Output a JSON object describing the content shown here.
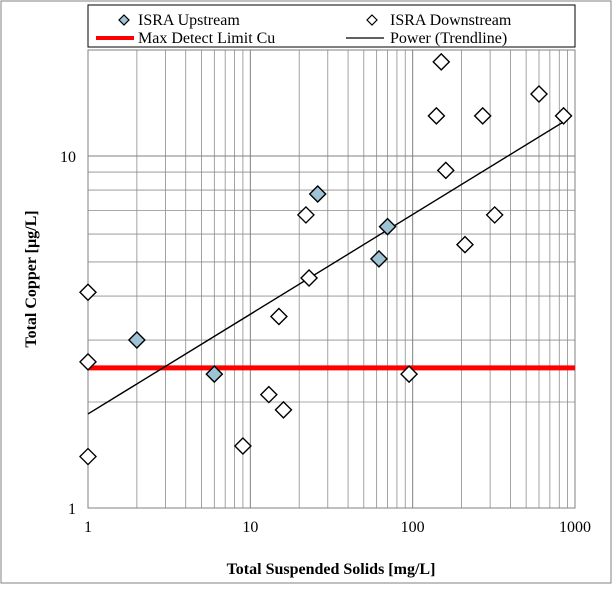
{
  "chart_data": {
    "type": "scatter",
    "xlabel": "Total Suspended Solids [mg/L]",
    "ylabel": "Total Copper [µg/L]",
    "x_scale": "log",
    "y_scale": "log",
    "xlim": [
      1,
      1000
    ],
    "ylim": [
      1,
      20
    ],
    "x_ticks": [
      "1",
      "10",
      "100",
      "1000"
    ],
    "y_ticks": [
      "1",
      "10"
    ],
    "grid": true,
    "legend_position": "top",
    "series": [
      {
        "name": "ISRA Upstream",
        "kind": "points",
        "marker": "diamond",
        "color": "#9dc3d4",
        "points": [
          {
            "x": 2,
            "y": 3.0
          },
          {
            "x": 6,
            "y": 2.4
          },
          {
            "x": 26,
            "y": 7.8
          },
          {
            "x": 62,
            "y": 5.1
          },
          {
            "x": 70,
            "y": 6.3
          }
        ]
      },
      {
        "name": "ISRA Downstream",
        "kind": "points",
        "marker": "diamond",
        "color": "#ffffff",
        "points": [
          {
            "x": 1,
            "y": 4.1
          },
          {
            "x": 1,
            "y": 2.6
          },
          {
            "x": 1,
            "y": 1.4
          },
          {
            "x": 9,
            "y": 1.5
          },
          {
            "x": 13,
            "y": 2.1
          },
          {
            "x": 15,
            "y": 3.5
          },
          {
            "x": 16,
            "y": 1.9
          },
          {
            "x": 22,
            "y": 6.8
          },
          {
            "x": 23,
            "y": 4.5
          },
          {
            "x": 95,
            "y": 2.4
          },
          {
            "x": 140,
            "y": 13
          },
          {
            "x": 150,
            "y": 18.5
          },
          {
            "x": 160,
            "y": 9.1
          },
          {
            "x": 210,
            "y": 5.6
          },
          {
            "x": 270,
            "y": 13
          },
          {
            "x": 320,
            "y": 6.8
          },
          {
            "x": 600,
            "y": 15
          },
          {
            "x": 850,
            "y": 13
          }
        ]
      },
      {
        "name": "Max Detect Limit Cu",
        "kind": "hline",
        "color": "#ff0000",
        "y": 2.5
      },
      {
        "name": "Power (Trendline)",
        "kind": "power-trend",
        "color": "#000000",
        "points": [
          {
            "x": 1,
            "y": 1.85
          },
          {
            "x": 850,
            "y": 12.5
          }
        ]
      }
    ]
  }
}
